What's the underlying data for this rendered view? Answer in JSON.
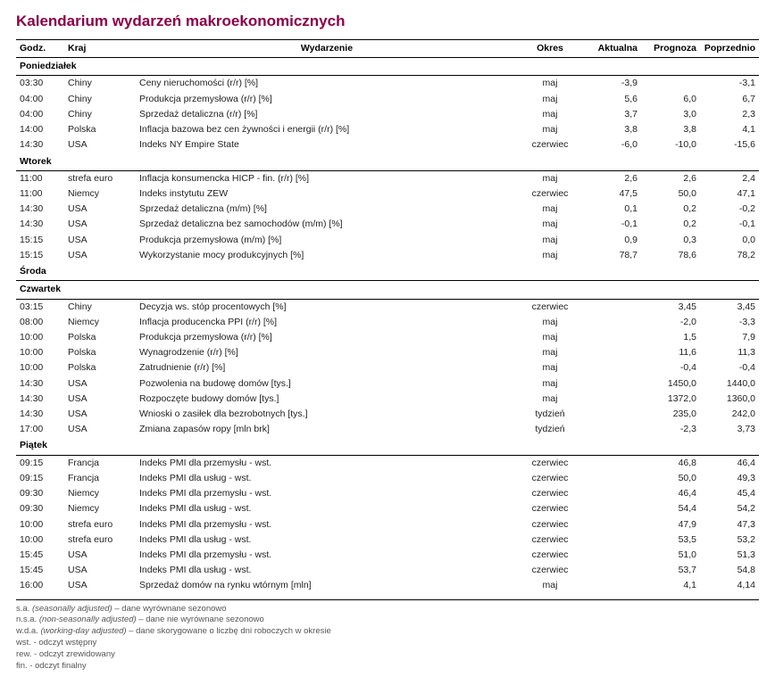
{
  "title": "Kalendarium wydarzeń makroekonomicznych",
  "columns": {
    "time": "Godz.",
    "country": "Kraj",
    "event": "Wydarzenie",
    "period": "Okres",
    "actual": "Aktualna",
    "forecast": "Prognoza",
    "previous": "Poprzednio"
  },
  "days": [
    {
      "label": "Poniedziałek",
      "rows": [
        {
          "time": "03:30",
          "country": "Chiny",
          "event": "Ceny nieruchomości (r/r) [%]",
          "period": "maj",
          "actual": "-3,9",
          "forecast": "",
          "previous": "-3,1"
        },
        {
          "time": "04:00",
          "country": "Chiny",
          "event": "Produkcja przemysłowa (r/r) [%]",
          "period": "maj",
          "actual": "5,6",
          "forecast": "6,0",
          "previous": "6,7"
        },
        {
          "time": "04:00",
          "country": "Chiny",
          "event": "Sprzedaż detaliczna (r/r) [%]",
          "period": "maj",
          "actual": "3,7",
          "forecast": "3,0",
          "previous": "2,3"
        },
        {
          "time": "14:00",
          "country": "Polska",
          "event": "Inflacja bazowa bez cen żywności i energii (r/r) [%]",
          "period": "maj",
          "actual": "3,8",
          "forecast": "3,8",
          "previous": "4,1"
        },
        {
          "time": "14:30",
          "country": "USA",
          "event": "Indeks NY Empire State",
          "period": "czerwiec",
          "actual": "-6,0",
          "forecast": "-10,0",
          "previous": "-15,6"
        }
      ]
    },
    {
      "label": "Wtorek",
      "rows": [
        {
          "time": "11:00",
          "country": "strefa euro",
          "event": "Inflacja konsumencka HICP - fin. (r/r) [%]",
          "period": "maj",
          "actual": "2,6",
          "forecast": "2,6",
          "previous": "2,4"
        },
        {
          "time": "11:00",
          "country": "Niemcy",
          "event": "Indeks instytutu ZEW",
          "period": "czerwiec",
          "actual": "47,5",
          "forecast": "50,0",
          "previous": "47,1"
        },
        {
          "time": "14:30",
          "country": "USA",
          "event": "Sprzedaż detaliczna (m/m) [%]",
          "period": "maj",
          "actual": "0,1",
          "forecast": "0,2",
          "previous": "-0,2"
        },
        {
          "time": "14:30",
          "country": "USA",
          "event": "Sprzedaż detaliczna bez samochodów (m/m) [%]",
          "period": "maj",
          "actual": "-0,1",
          "forecast": "0,2",
          "previous": "-0,1"
        },
        {
          "time": "15:15",
          "country": "USA",
          "event": "Produkcja przemysłowa (m/m) [%]",
          "period": "maj",
          "actual": "0,9",
          "forecast": "0,3",
          "previous": "0,0"
        },
        {
          "time": "15:15",
          "country": "USA",
          "event": "Wykorzystanie mocy produkcyjnych [%]",
          "period": "maj",
          "actual": "78,7",
          "forecast": "78,6",
          "previous": "78,2"
        }
      ]
    },
    {
      "label": "Środa",
      "rows": []
    },
    {
      "label": "Czwartek",
      "rows": [
        {
          "time": "03:15",
          "country": "Chiny",
          "event": "Decyzja ws. stóp procentowych [%]",
          "period": "czerwiec",
          "actual": "",
          "forecast": "3,45",
          "previous": "3,45"
        },
        {
          "time": "08:00",
          "country": "Niemcy",
          "event": "Inflacja producencka PPI (r/r) [%]",
          "period": "maj",
          "actual": "",
          "forecast": "-2,0",
          "previous": "-3,3"
        },
        {
          "time": "10:00",
          "country": "Polska",
          "event": "Produkcja przemysłowa (r/r) [%]",
          "period": "maj",
          "actual": "",
          "forecast": "1,5",
          "previous": "7,9"
        },
        {
          "time": "10:00",
          "country": "Polska",
          "event": "Wynagrodzenie (r/r) [%]",
          "period": "maj",
          "actual": "",
          "forecast": "11,6",
          "previous": "11,3"
        },
        {
          "time": "10:00",
          "country": "Polska",
          "event": "Zatrudnienie (r/r) [%]",
          "period": "maj",
          "actual": "",
          "forecast": "-0,4",
          "previous": "-0,4"
        },
        {
          "time": "14:30",
          "country": "USA",
          "event": "Pozwolenia na budowę domów [tys.]",
          "period": "maj",
          "actual": "",
          "forecast": "1450,0",
          "previous": "1440,0"
        },
        {
          "time": "14:30",
          "country": "USA",
          "event": "Rozpoczęte budowy domów [tys.]",
          "period": "maj",
          "actual": "",
          "forecast": "1372,0",
          "previous": "1360,0"
        },
        {
          "time": "14:30",
          "country": "USA",
          "event": "Wnioski o zasiłek dla bezrobotnych [tys.]",
          "period": "tydzień",
          "actual": "",
          "forecast": "235,0",
          "previous": "242,0"
        },
        {
          "time": "17:00",
          "country": "USA",
          "event": "Zmiana zapasów ropy [mln brk]",
          "period": "tydzień",
          "actual": "",
          "forecast": "-2,3",
          "previous": "3,73"
        }
      ]
    },
    {
      "label": "Piątek",
      "rows": [
        {
          "time": "09:15",
          "country": "Francja",
          "event": "Indeks PMI dla przemysłu - wst.",
          "period": "czerwiec",
          "actual": "",
          "forecast": "46,8",
          "previous": "46,4"
        },
        {
          "time": "09:15",
          "country": "Francja",
          "event": "Indeks PMI dla usług - wst.",
          "period": "czerwiec",
          "actual": "",
          "forecast": "50,0",
          "previous": "49,3"
        },
        {
          "time": "09:30",
          "country": "Niemcy",
          "event": "Indeks PMI dla przemysłu - wst.",
          "period": "czerwiec",
          "actual": "",
          "forecast": "46,4",
          "previous": "45,4"
        },
        {
          "time": "09:30",
          "country": "Niemcy",
          "event": "Indeks PMI dla usług - wst.",
          "period": "czerwiec",
          "actual": "",
          "forecast": "54,4",
          "previous": "54,2"
        },
        {
          "time": "10:00",
          "country": "strefa euro",
          "event": "Indeks PMI dla przemysłu - wst.",
          "period": "czerwiec",
          "actual": "",
          "forecast": "47,9",
          "previous": "47,3"
        },
        {
          "time": "10:00",
          "country": "strefa euro",
          "event": "Indeks PMI dla usług - wst.",
          "period": "czerwiec",
          "actual": "",
          "forecast": "53,5",
          "previous": "53,2"
        },
        {
          "time": "15:45",
          "country": "USA",
          "event": "Indeks PMI dla przemysłu - wst.",
          "period": "czerwiec",
          "actual": "",
          "forecast": "51,0",
          "previous": "51,3"
        },
        {
          "time": "15:45",
          "country": "USA",
          "event": "Indeks PMI dla usług - wst.",
          "period": "czerwiec",
          "actual": "",
          "forecast": "53,7",
          "previous": "54,8"
        },
        {
          "time": "16:00",
          "country": "USA",
          "event": "Sprzedaż domów na rynku wtórnym [mln]",
          "period": "maj",
          "actual": "",
          "forecast": "4,1",
          "previous": "4,14"
        }
      ]
    }
  ],
  "footnotes": [
    {
      "abbr": "s.a.",
      "eng": "(seasonally adjusted)",
      "desc": " – dane wyrównane sezonowo"
    },
    {
      "abbr": "n.s.a.",
      "eng": "(non-seasonally adjusted)",
      "desc": " – dane nie wyrównane sezonowo"
    },
    {
      "abbr": "w.d.a.",
      "eng": "(working-day adjusted)",
      "desc": " – dane skorygowane o liczbę dni roboczych w okresie"
    },
    {
      "abbr": "wst.",
      "eng": "",
      "desc": " - odczyt wstępny"
    },
    {
      "abbr": "rew.",
      "eng": "",
      "desc": " - odczyt zrewidowany"
    },
    {
      "abbr": "fin.",
      "eng": "",
      "desc": " - odczyt finalny"
    }
  ]
}
